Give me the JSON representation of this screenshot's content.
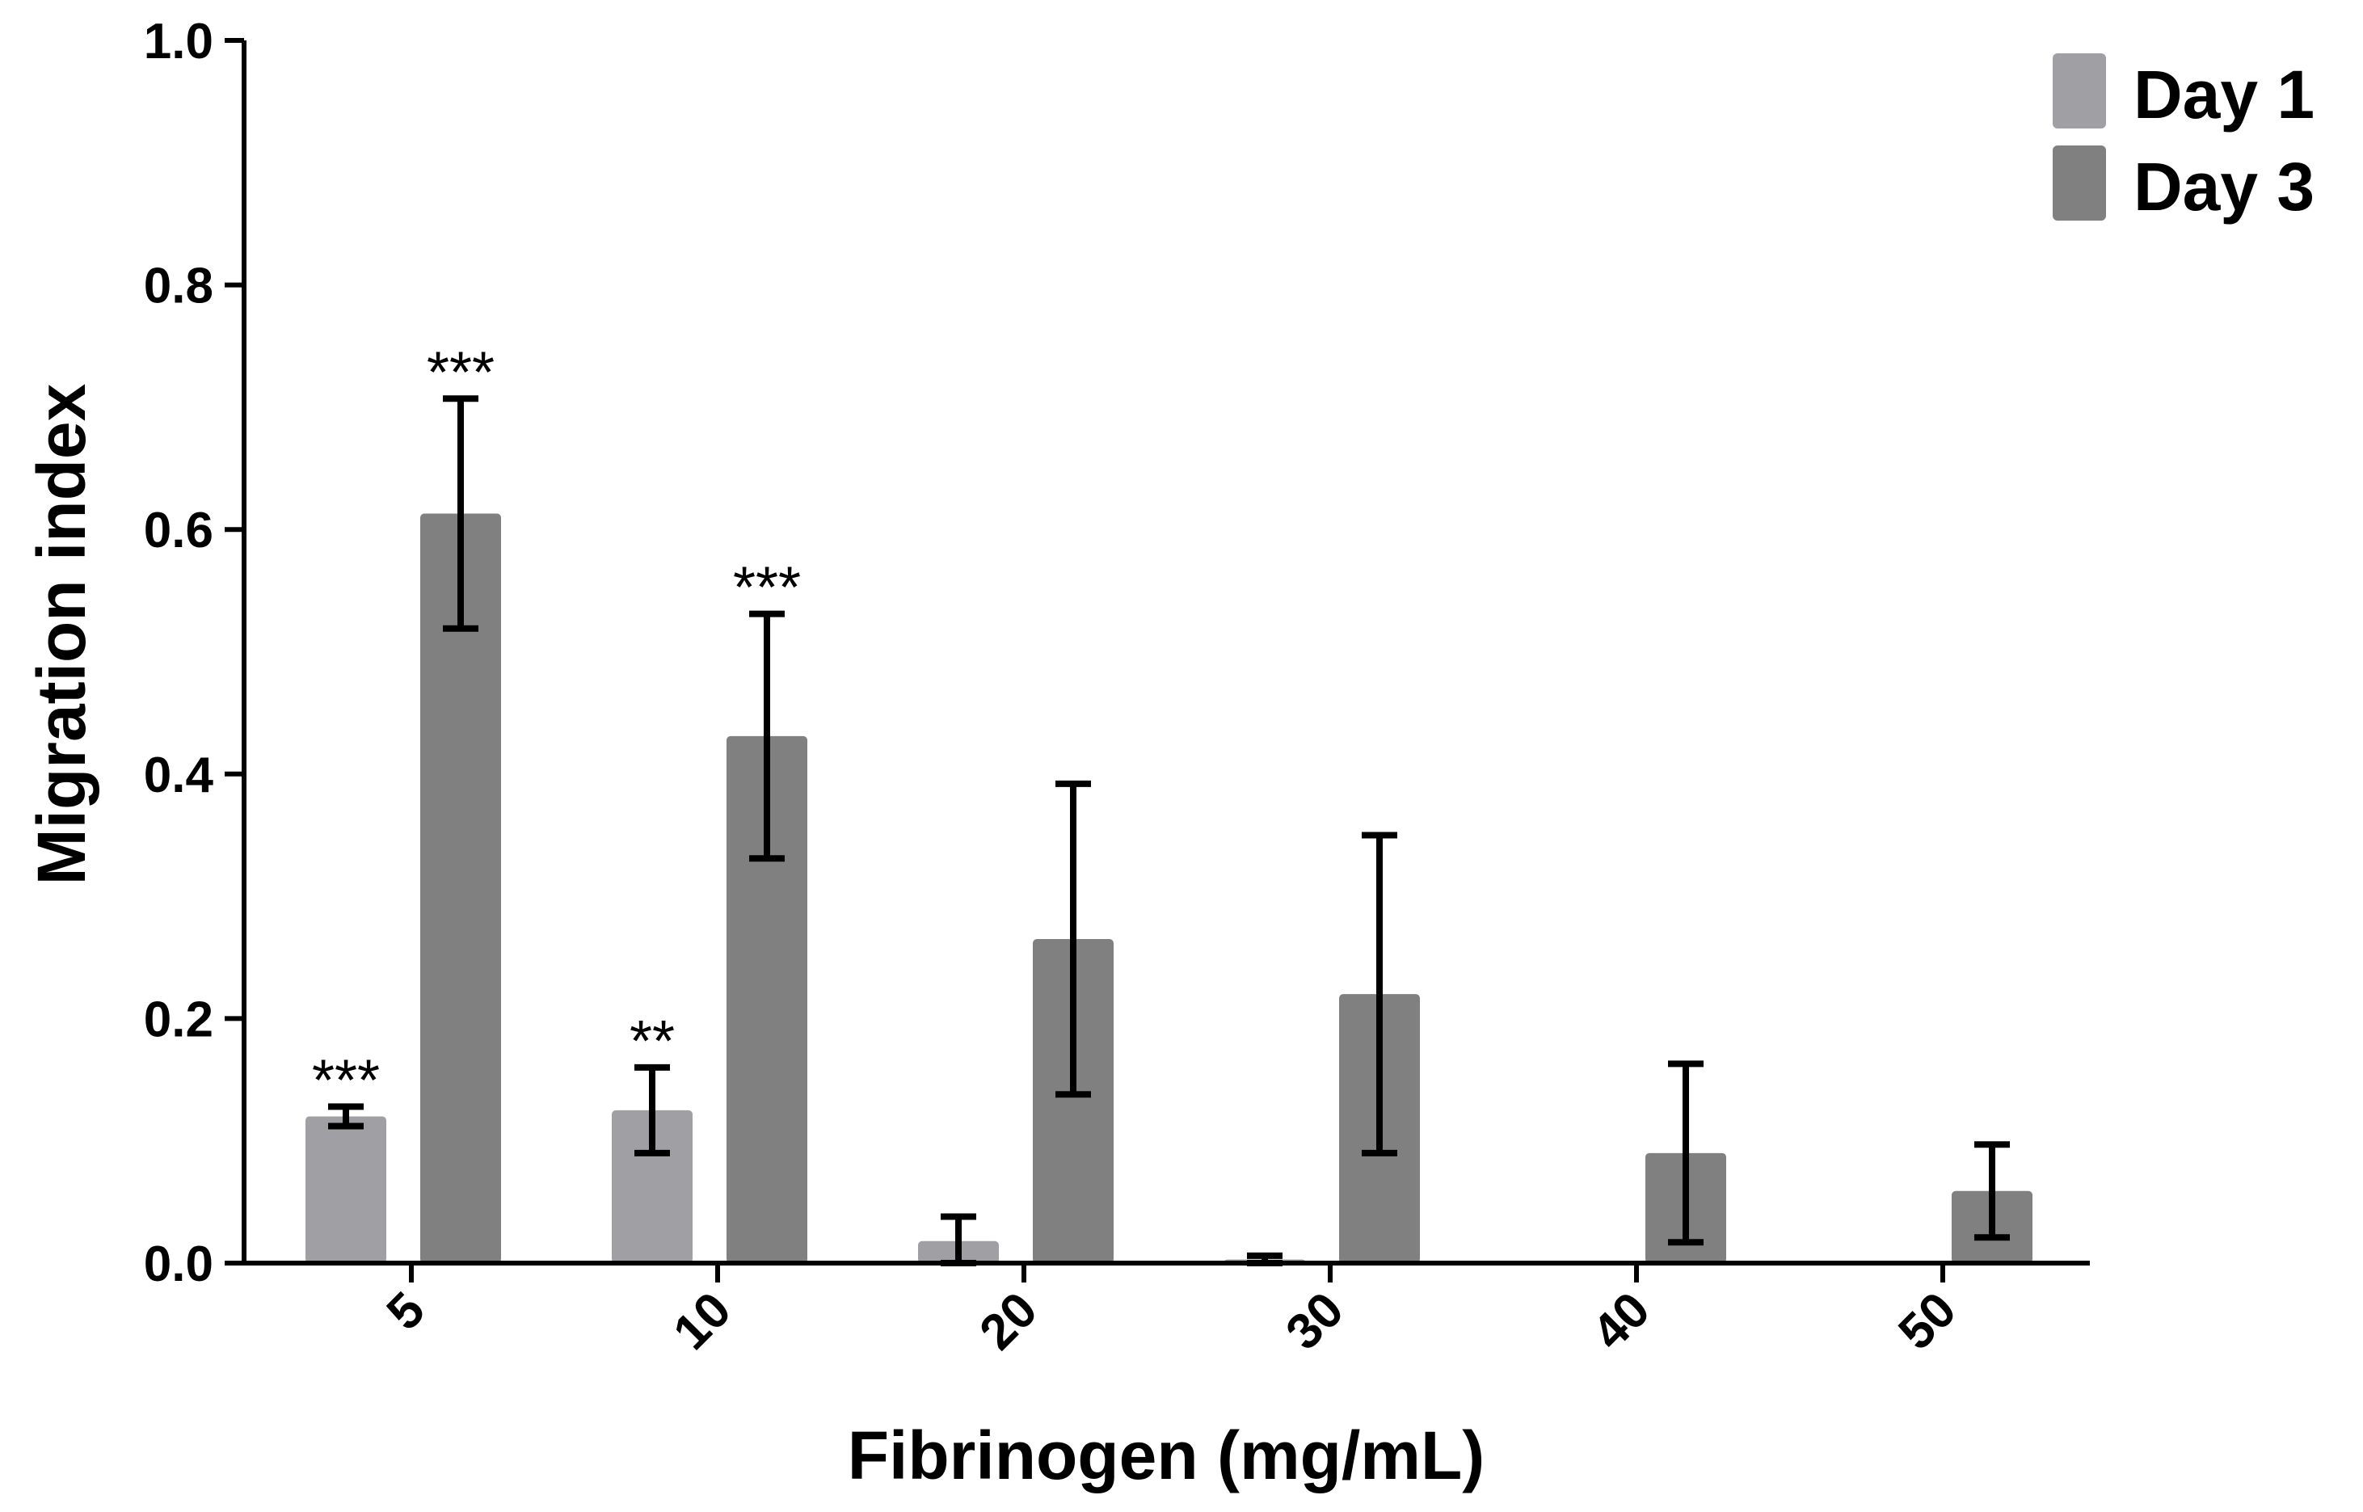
{
  "chart_data": {
    "type": "bar",
    "title": "",
    "xlabel": "Fibrinogen (mg/mL)",
    "ylabel": "Migration index",
    "ylim": [
      0,
      1.0
    ],
    "yticks": [
      "0.0",
      "0.2",
      "0.4",
      "0.6",
      "0.8",
      "1.0"
    ],
    "categories": [
      "5",
      "10",
      "20",
      "30",
      "40",
      "50"
    ],
    "series": [
      {
        "name": "Day 1",
        "color": "#a0a0a4",
        "values": [
          0.12,
          0.125,
          0.018,
          0.003,
          0,
          0
        ],
        "error": [
          0.008,
          0.035,
          0.02,
          0.003,
          0,
          0
        ],
        "annotations": [
          "***",
          "**",
          "",
          "",
          "",
          ""
        ]
      },
      {
        "name": "Day 3",
        "color": "#808080",
        "values": [
          0.613,
          0.431,
          0.265,
          0.22,
          0.09,
          0.059
        ],
        "error": [
          0.094,
          0.1,
          0.127,
          0.13,
          0.073,
          0.038
        ],
        "annotations": [
          "***",
          "***",
          "",
          "",
          "",
          ""
        ]
      }
    ],
    "legend": "top-right",
    "grid": false
  }
}
